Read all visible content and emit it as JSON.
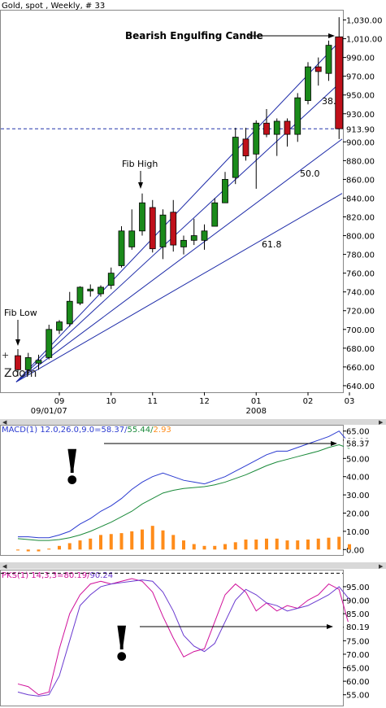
{
  "chart_data": [
    {
      "type": "candlestick",
      "title": "Gold, spot , Weekly, # 33",
      "ylim": [
        633,
        1040
      ],
      "y_ticks": [
        640,
        660,
        680,
        700,
        720,
        740,
        760,
        780,
        800,
        820,
        840,
        860,
        880,
        900,
        930,
        950,
        970,
        990,
        1010,
        1030
      ],
      "y_tick_labels": [
        "640.00",
        "660.00",
        "680.00",
        "700.00",
        "720.00",
        "740.00",
        "760.00",
        "780.00",
        "800.00",
        "820.00",
        "840.00",
        "860.00",
        "880.00",
        "900.00",
        "930.00",
        "950.00",
        "970.00",
        "990.00",
        "1,010.00",
        "1,030.00"
      ],
      "x_labels": [
        {
          "index": 4,
          "label": "09"
        },
        {
          "index": 9,
          "label": "10"
        },
        {
          "index": 13,
          "label": "11"
        },
        {
          "index": 18,
          "label": "12"
        },
        {
          "index": 23,
          "label": "01"
        },
        {
          "index": 28,
          "label": "02"
        },
        {
          "index": 32,
          "label": "03"
        }
      ],
      "x_sublabels": [
        {
          "index": 3,
          "label": "09/01/07"
        },
        {
          "index": 23,
          "label": "2008"
        }
      ],
      "current_price": 913.9,
      "current_price_label": "913.90",
      "colors": {
        "up": "#1a8a1a",
        "down": "#c0101a",
        "hline": "#2233aa",
        "fan": "#1c2aa8"
      },
      "candles": [
        {
          "o": 672,
          "h": 679,
          "l": 650,
          "c": 657
        },
        {
          "o": 657,
          "h": 675,
          "l": 652,
          "c": 670
        },
        {
          "o": 664,
          "h": 673,
          "l": 657,
          "c": 667
        },
        {
          "o": 670,
          "h": 705,
          "l": 668,
          "c": 700
        },
        {
          "o": 699,
          "h": 710,
          "l": 695,
          "c": 708
        },
        {
          "o": 706,
          "h": 740,
          "l": 703,
          "c": 730
        },
        {
          "o": 728,
          "h": 746,
          "l": 726,
          "c": 745
        },
        {
          "o": 741,
          "h": 748,
          "l": 735,
          "c": 743
        },
        {
          "o": 738,
          "h": 747,
          "l": 735,
          "c": 745
        },
        {
          "o": 747,
          "h": 766,
          "l": 743,
          "c": 760
        },
        {
          "o": 768,
          "h": 810,
          "l": 766,
          "c": 805
        },
        {
          "o": 788,
          "h": 828,
          "l": 785,
          "c": 805
        },
        {
          "o": 805,
          "h": 845,
          "l": 800,
          "c": 835
        },
        {
          "o": 830,
          "h": 838,
          "l": 782,
          "c": 786
        },
        {
          "o": 788,
          "h": 828,
          "l": 775,
          "c": 822
        },
        {
          "o": 825,
          "h": 838,
          "l": 783,
          "c": 790
        },
        {
          "o": 788,
          "h": 800,
          "l": 780,
          "c": 795
        },
        {
          "o": 795,
          "h": 818,
          "l": 790,
          "c": 800
        },
        {
          "o": 795,
          "h": 812,
          "l": 785,
          "c": 805
        },
        {
          "o": 810,
          "h": 840,
          "l": 810,
          "c": 835
        },
        {
          "o": 835,
          "h": 868,
          "l": 835,
          "c": 860
        },
        {
          "o": 862,
          "h": 915,
          "l": 855,
          "c": 905
        },
        {
          "o": 903,
          "h": 915,
          "l": 880,
          "c": 885
        },
        {
          "o": 887,
          "h": 923,
          "l": 850,
          "c": 920
        },
        {
          "o": 920,
          "h": 935,
          "l": 905,
          "c": 908
        },
        {
          "o": 908,
          "h": 925,
          "l": 885,
          "c": 922
        },
        {
          "o": 922,
          "h": 925,
          "l": 895,
          "c": 908
        },
        {
          "o": 908,
          "h": 952,
          "l": 900,
          "c": 947
        },
        {
          "o": 944,
          "h": 985,
          "l": 940,
          "c": 980
        },
        {
          "o": 980,
          "h": 990,
          "l": 960,
          "c": 975
        },
        {
          "o": 973,
          "h": 1008,
          "l": 965,
          "c": 1003
        },
        {
          "o": 1012,
          "h": 1033,
          "l": 903,
          "c": 914
        }
      ],
      "fib_fan": {
        "origin_index": 0,
        "origin_price": 644,
        "lines": [
          {
            "label": "38.",
            "end_price": 965
          },
          {
            "label": "50.0",
            "end_price": 903
          },
          {
            "label": "61.8",
            "end_price": 845
          }
        ],
        "extra_lines": [
          {
            "end_price": 1010
          }
        ]
      },
      "annotations": [
        {
          "text": "Bearish Engulfing Candle"
        },
        {
          "text": "Fib High"
        },
        {
          "text": "Fib Low"
        },
        {
          "text": "Zoom"
        }
      ]
    },
    {
      "type": "line+bar",
      "title": "MACD(1) 12.0,26.0,9.0=58.37/55.44/2.93",
      "title_parts": {
        "head": "MACD(1) 12.0,26.0,9.0=",
        "v1": "58.37",
        "sep1": "/",
        "v2": "55.44",
        "sep2": "/",
        "v3": "2.93"
      },
      "ylim": [
        -3,
        68
      ],
      "y_ticks": [
        0,
        10,
        20,
        30,
        40,
        50,
        60,
        65
      ],
      "y_tick_labels": [
        "0.00",
        "10.00",
        "20.00",
        "30.00",
        "40.00",
        "50.00",
        "60.00",
        "65.00"
      ],
      "current_label": "58.37",
      "series": [
        {
          "name": "MACD",
          "color": "#2a3ad0",
          "values": [
            7,
            7,
            6.5,
            6.5,
            8,
            10,
            14,
            17,
            21,
            24,
            28,
            33,
            37,
            40,
            42,
            40,
            38,
            37,
            36,
            38,
            40,
            43,
            46,
            49,
            52,
            54,
            54,
            56,
            58,
            60,
            62,
            65,
            58.37
          ]
        },
        {
          "name": "Signal",
          "color": "#1a8a3a",
          "values": [
            6,
            5.5,
            5,
            5,
            5.5,
            6.5,
            8,
            10,
            12.5,
            15,
            18,
            21,
            25,
            28,
            31,
            32.5,
            33.5,
            34,
            34.5,
            35.5,
            37,
            39,
            41,
            43.5,
            46,
            48,
            49.5,
            51,
            52.5,
            54,
            56,
            57.5,
            55.44
          ]
        },
        {
          "name": "Histogram",
          "color": "#ff8c1a",
          "values": [
            -0.5,
            -1,
            -1,
            0.5,
            2,
            3.5,
            5,
            6,
            8,
            8.5,
            9,
            10,
            11,
            13,
            10.5,
            8,
            5,
            3,
            2,
            2,
            3,
            4,
            5.5,
            5.5,
            6,
            6,
            5,
            5,
            5.5,
            6,
            6.5,
            7,
            2.93
          ]
        }
      ]
    },
    {
      "type": "line",
      "title": "PKS(1) 14,3,3=80.19/90.24",
      "title_parts": {
        "head": "PKS(1) 14,3,3=",
        "v1": "80.19",
        "sep1": "/",
        "v2": "90.24"
      },
      "ylim": [
        51,
        101
      ],
      "y_ticks": [
        55,
        60,
        65,
        70,
        75,
        80,
        85,
        90,
        95
      ],
      "y_tick_labels": [
        "55.00",
        "60.00",
        "65.00",
        "70.00",
        "75.00",
        "80.00",
        "85.00",
        "90.00",
        "95.00"
      ],
      "current_label": "80.19",
      "dashed_level": 100,
      "series": [
        {
          "name": "%K",
          "color": "#d0109a",
          "values": [
            59,
            58,
            55,
            56,
            72,
            85,
            92,
            96,
            97,
            96,
            97,
            98,
            97,
            93,
            84,
            76,
            69,
            71,
            72,
            82,
            92,
            96,
            93,
            86,
            89,
            86,
            88,
            87,
            90,
            92,
            96,
            94,
            80.19
          ]
        },
        {
          "name": "%D",
          "color": "#6a3ad0",
          "values": [
            56,
            55,
            54.5,
            55,
            62,
            75,
            88,
            92,
            95,
            96,
            96.5,
            97,
            97.5,
            97,
            93,
            86,
            77,
            73,
            71,
            74,
            82,
            90,
            94,
            92,
            89,
            88,
            86,
            87,
            88,
            90,
            92,
            95,
            90.24
          ]
        }
      ]
    }
  ]
}
